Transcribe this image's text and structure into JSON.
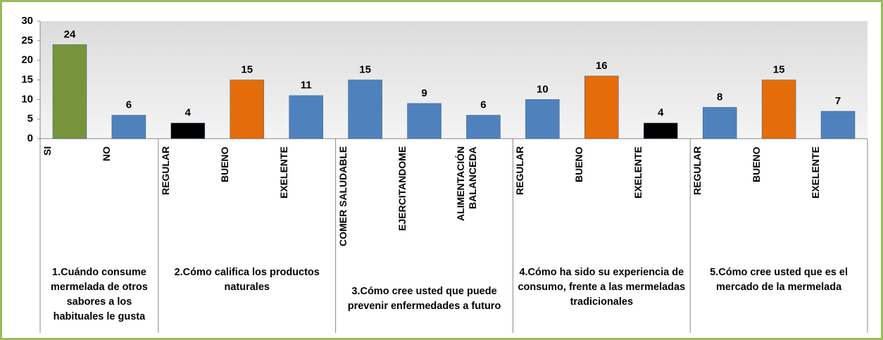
{
  "chart_data": {
    "type": "bar",
    "ylim": [
      0,
      30
    ],
    "yticks": [
      0,
      5,
      10,
      15,
      20,
      25,
      30
    ],
    "groups": [
      {
        "label": "1.Cuándo consume mermelada de otros sabores a los habituales le gusta",
        "categories": [
          "SI",
          "NO"
        ],
        "values": [
          24,
          6
        ],
        "colors": [
          "#77933c",
          "#4f81bd"
        ]
      },
      {
        "label": "2.Cómo califica los productos naturales",
        "categories": [
          "REGULAR",
          "BUENO",
          "EXELENTE"
        ],
        "values": [
          4,
          15,
          11
        ],
        "colors": [
          "#000000",
          "#e46c0a",
          "#4f81bd"
        ]
      },
      {
        "label": "3.Cómo cree usted que puede prevenir enfermedades a futuro",
        "categories": [
          "COMER SALUDABLE",
          "EJERCITANDOME",
          "ALIMENTACIÓN BALANCEDA"
        ],
        "values": [
          15,
          9,
          6
        ],
        "colors": [
          "#4f81bd",
          "#4f81bd",
          "#4f81bd"
        ]
      },
      {
        "label": "4.Cómo ha sido su experiencia de consumo, frente a las mermeladas tradicionales",
        "categories": [
          "REGULAR",
          "BUENO",
          "EXELENTE"
        ],
        "values": [
          10,
          16,
          4
        ],
        "colors": [
          "#4f81bd",
          "#e46c0a",
          "#000000"
        ]
      },
      {
        "label": "5.Cómo cree usted que es el mercado de la mermelada",
        "categories": [
          "REGULAR",
          "BUENO",
          "EXELENTE"
        ],
        "values": [
          8,
          15,
          7
        ],
        "colors": [
          "#4f81bd",
          "#e46c0a",
          "#4f81bd"
        ]
      }
    ]
  }
}
